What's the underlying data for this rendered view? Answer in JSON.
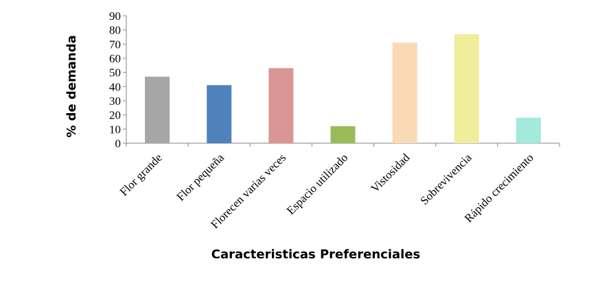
{
  "chart_data": {
    "type": "bar",
    "title": "",
    "xlabel": "Caracteristicas Preferenciales",
    "ylabel": "% de demanda",
    "ylim": [
      0,
      90
    ],
    "yticks": [
      0,
      10,
      20,
      30,
      40,
      50,
      60,
      70,
      80,
      90
    ],
    "grid": false,
    "legend": "none",
    "categories": [
      "Flor grande",
      "Flor pequeña",
      "Florecen varias veces",
      "Espacio utilizado",
      "Vistosidad",
      "Sobrevivencia",
      "Rápido crecimiento"
    ],
    "values": [
      47,
      41,
      53,
      12,
      71,
      77,
      18
    ],
    "colors": [
      "#a6a6a6",
      "#4f81bd",
      "#d99694",
      "#9bbb59",
      "#fad9b5",
      "#f0ed9b",
      "#a3e9dc"
    ]
  }
}
